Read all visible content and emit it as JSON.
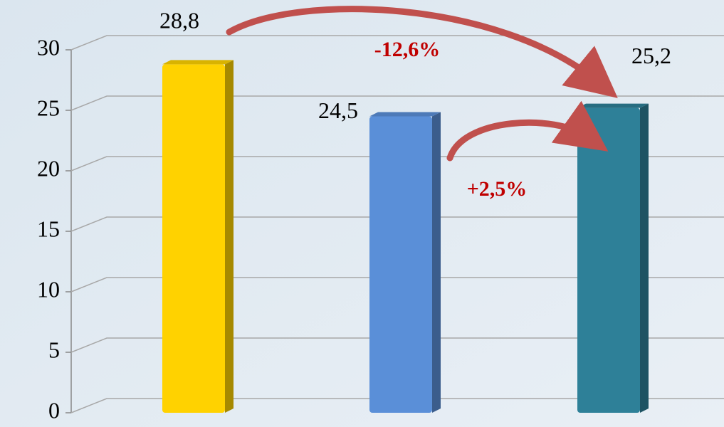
{
  "chart_data": {
    "type": "bar",
    "categories": [
      null,
      null,
      null
    ],
    "values": [
      28.8,
      24.5,
      25.2
    ],
    "value_labels": [
      "28,8",
      "24,5",
      "25,2"
    ],
    "colors": [
      "#ffd200",
      "#5a8fd8",
      "#2e8098"
    ],
    "ylim": [
      0,
      30
    ],
    "yticks": [
      0,
      5,
      10,
      15,
      20,
      25,
      30
    ],
    "grid": true,
    "annotations": [
      "-12,6%",
      "+2,5%"
    ]
  }
}
